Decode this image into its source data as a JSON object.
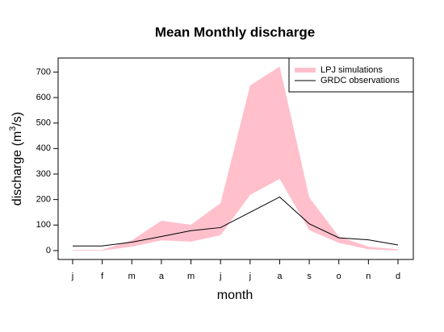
{
  "chart_data": {
    "type": "band-line",
    "title": "Mean Monthly discharge",
    "x_label": "month",
    "y_label": {
      "pre": "discharge (m",
      "sup": "3",
      "post": "/s)"
    },
    "categories": [
      "j",
      "f",
      "m",
      "a",
      "m",
      "j",
      "j",
      "a",
      "s",
      "o",
      "n",
      "d"
    ],
    "series": [
      {
        "name": "LPJ simulations",
        "color": "#ffc0cb",
        "upper": [
          3,
          3,
          40,
          117,
          101,
          186,
          647,
          722,
          208,
          55,
          15,
          5
        ],
        "lower": [
          0,
          0,
          15,
          40,
          35,
          60,
          218,
          281,
          80,
          30,
          5,
          0
        ]
      },
      {
        "name": "GRDC observations",
        "color": "#000000",
        "values": [
          18,
          18,
          33,
          55,
          78,
          90,
          150,
          210,
          105,
          50,
          42,
          22
        ]
      }
    ],
    "ylim": [
      -35,
      755
    ],
    "yticks": [
      0,
      100,
      200,
      300,
      400,
      500,
      600,
      700
    ],
    "legend": "top-right"
  }
}
